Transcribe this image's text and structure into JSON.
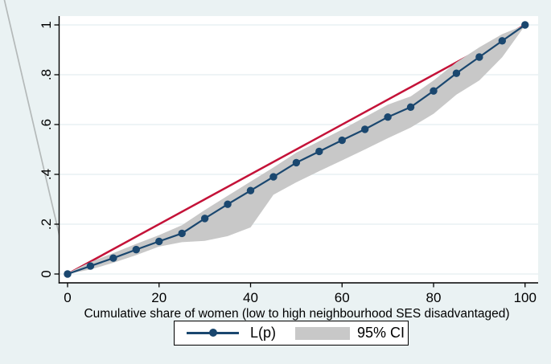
{
  "figure": {
    "background": "#eaf2f3",
    "plot_background": "#ffffff",
    "grid_color": "#e3eef1",
    "axis_color": "#000000",
    "artifact_line_color": "#b4b9b9",
    "artifact_line_note": "gray diagonal line from top-left image corner down to the plot origin"
  },
  "chart_data": {
    "type": "line",
    "title": "",
    "xlabel": "Cumulative share of women (low to high neighbourhood SES disadvantaged)",
    "ylabel": "",
    "xlim": [
      0,
      100
    ],
    "ylim": [
      0,
      1
    ],
    "grid": "horizontal gridlines at each y tick",
    "x_ticks": [
      0,
      20,
      40,
      60,
      80,
      100
    ],
    "y_ticks": [
      "0",
      ".2",
      ".4",
      ".6",
      ".8",
      "1"
    ],
    "y_tick_values": [
      0,
      0.2,
      0.4,
      0.6,
      0.8,
      1
    ],
    "x": [
      0,
      5,
      10,
      15,
      20,
      25,
      30,
      35,
      40,
      45,
      50,
      55,
      60,
      65,
      70,
      75,
      80,
      85,
      90,
      95,
      100
    ],
    "series": [
      {
        "name": "L(p)",
        "type": "line+markers",
        "color": "#1a476f",
        "values": [
          0,
          0.032,
          0.064,
          0.098,
          0.131,
          0.163,
          0.223,
          0.28,
          0.335,
          0.39,
          0.447,
          0.492,
          0.537,
          0.581,
          0.63,
          0.67,
          0.735,
          0.806,
          0.871,
          0.936,
          1
        ]
      },
      {
        "name": "95% CI",
        "type": "band",
        "color": "#c8c8c8",
        "low": [
          0,
          0.018,
          0.045,
          0.076,
          0.11,
          0.128,
          0.133,
          0.152,
          0.187,
          0.318,
          0.368,
          0.413,
          0.456,
          0.5,
          0.545,
          0.588,
          0.643,
          0.72,
          0.777,
          0.87,
          0.998
        ],
        "high": [
          0.004,
          0.048,
          0.084,
          0.121,
          0.156,
          0.196,
          0.257,
          0.314,
          0.371,
          0.428,
          0.487,
          0.533,
          0.58,
          0.63,
          0.68,
          0.713,
          0.777,
          0.85,
          0.91,
          0.963,
          1
        ]
      },
      {
        "name": "line of equality",
        "type": "line",
        "color": "#c41238",
        "points": [
          [
            0,
            0
          ],
          [
            100,
            1
          ]
        ],
        "in_legend": false
      }
    ],
    "legend": {
      "position": "bottom-center",
      "entries": [
        {
          "label": "L(p)"
        },
        {
          "label": "95% CI"
        }
      ]
    }
  }
}
